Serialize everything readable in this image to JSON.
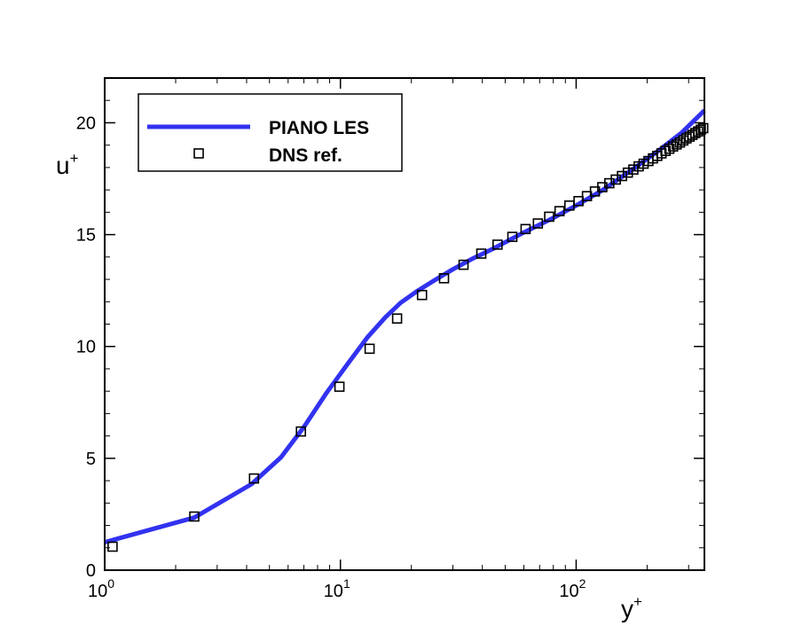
{
  "chart_data": {
    "type": "line",
    "title": "",
    "xlabel": "y",
    "xlabel_sup": "+",
    "ylabel": "u",
    "ylabel_sup": "+",
    "x_scale": "log",
    "xlim": [
      1,
      350
    ],
    "ylim": [
      0,
      22
    ],
    "grid": false,
    "legend_position": "top-left",
    "x_ticks": [
      {
        "value": 1,
        "base": "10",
        "exp": "0"
      },
      {
        "value": 10,
        "base": "10",
        "exp": "1"
      },
      {
        "value": 100,
        "base": "10",
        "exp": "2"
      }
    ],
    "y_ticks": [
      {
        "value": 0,
        "label": "0"
      },
      {
        "value": 5,
        "label": "5"
      },
      {
        "value": 10,
        "label": "10"
      },
      {
        "value": 15,
        "label": "15"
      },
      {
        "value": 20,
        "label": "20"
      }
    ],
    "series": [
      {
        "name": "PIANO LES",
        "style": "line",
        "color": "#3232f0",
        "x": [
          1.0,
          2.4,
          4.2,
          5.6,
          7.0,
          8.7,
          10.7,
          13.0,
          15.5,
          18.0,
          21.0,
          25.0,
          30.0,
          36.0,
          45.0,
          60.0,
          80.0,
          100,
          130,
          170,
          220,
          280,
          350
        ],
        "y": [
          1.25,
          2.35,
          3.85,
          5.05,
          6.4,
          7.9,
          9.2,
          10.4,
          11.3,
          11.95,
          12.45,
          12.95,
          13.45,
          13.9,
          14.4,
          15.1,
          15.75,
          16.3,
          17.0,
          17.85,
          18.7,
          19.55,
          20.55
        ]
      },
      {
        "name": "DNS ref.",
        "style": "markers",
        "marker": "square",
        "color": "#000000",
        "x": [
          1.08,
          2.4,
          4.3,
          6.8,
          9.9,
          13.3,
          17.4,
          22.2,
          27.5,
          33.3,
          39.6,
          46.4,
          53.6,
          61.0,
          68.8,
          76.8,
          85.0,
          93.6,
          102.3,
          111.1,
          120.1,
          129.1,
          138.2,
          147.3,
          156.5,
          165.7,
          174.9,
          184.1,
          193.4,
          202.6,
          211.8,
          221.0,
          230.2,
          239.4,
          248.6,
          257.7,
          266.8,
          275.9,
          284.9,
          293.9,
          302.8,
          311.6,
          320.4,
          329.1,
          337.7,
          346.2
        ],
        "y": [
          1.05,
          2.4,
          4.1,
          6.2,
          8.2,
          9.9,
          11.25,
          12.3,
          13.05,
          13.65,
          14.15,
          14.55,
          14.9,
          15.25,
          15.5,
          15.8,
          16.05,
          16.3,
          16.5,
          16.72,
          16.93,
          17.12,
          17.3,
          17.46,
          17.62,
          17.77,
          17.91,
          18.05,
          18.17,
          18.29,
          18.41,
          18.52,
          18.63,
          18.74,
          18.84,
          18.94,
          19.03,
          19.12,
          19.21,
          19.3,
          19.38,
          19.46,
          19.54,
          19.61,
          19.69,
          19.76
        ]
      }
    ]
  }
}
